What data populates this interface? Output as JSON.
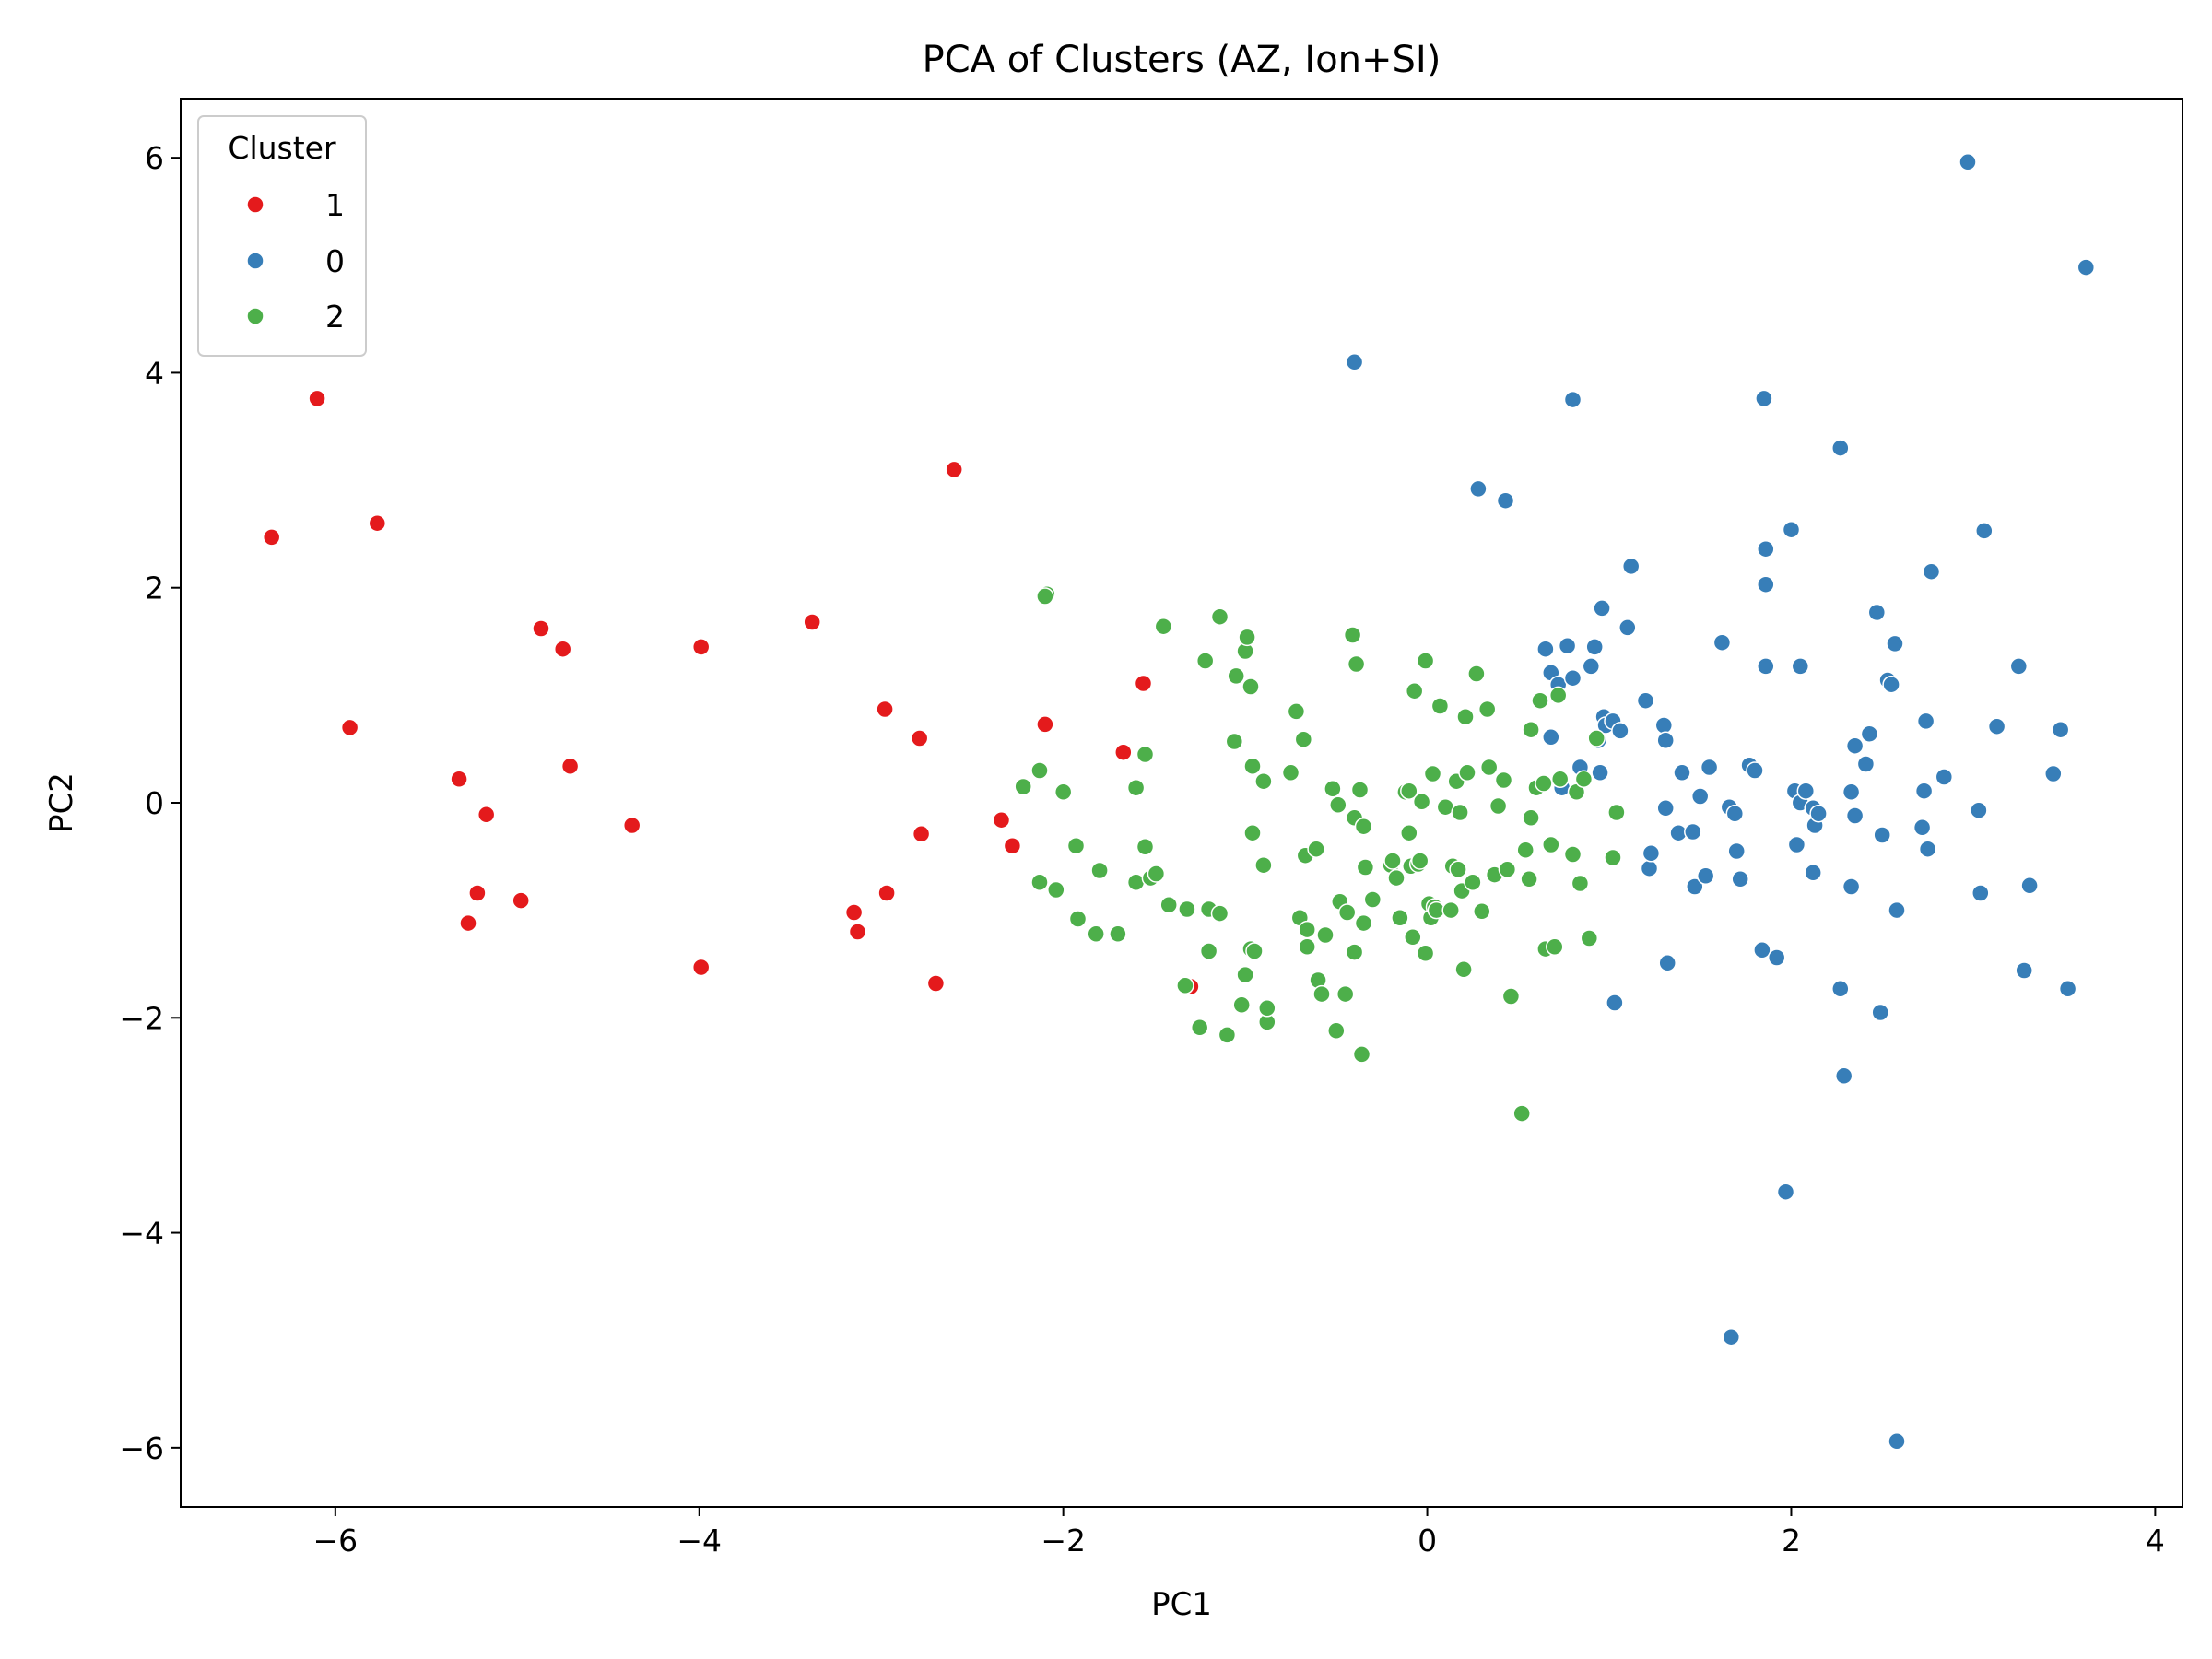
{
  "chart_data": {
    "type": "scatter",
    "title": "PCA of Clusters (AZ, Ion+SI)",
    "xlabel": "PC1",
    "ylabel": "PC2",
    "xlim": [
      -6.85,
      4.15
    ],
    "ylim": [
      -6.55,
      6.55
    ],
    "xticks": [
      -6,
      -4,
      -2,
      0,
      2,
      4
    ],
    "yticks": [
      -6,
      -4,
      -2,
      0,
      2,
      4,
      6
    ],
    "xtick_labels": [
      "−6",
      "−4",
      "−2",
      "0",
      "2",
      "4"
    ],
    "ytick_labels": [
      "−6",
      "−4",
      "−2",
      "0",
      "2",
      "4",
      "6"
    ],
    "grid": false,
    "legend": {
      "title": "Cluster",
      "placement": "top-left"
    },
    "series": [
      {
        "name": "1",
        "color": "#e41a1c",
        "points": [
          [
            -6.35,
            2.47
          ],
          [
            -6.1,
            3.76
          ],
          [
            -5.92,
            0.7
          ],
          [
            -5.77,
            2.6
          ],
          [
            -5.32,
            0.22
          ],
          [
            -5.27,
            -1.12
          ],
          [
            -5.22,
            -0.84
          ],
          [
            -5.17,
            -0.11
          ],
          [
            -4.98,
            -0.91
          ],
          [
            -4.87,
            1.62
          ],
          [
            -4.75,
            1.43
          ],
          [
            -4.71,
            0.34
          ],
          [
            -4.37,
            -0.21
          ],
          [
            -3.99,
            1.45
          ],
          [
            -3.99,
            -1.53
          ],
          [
            -3.38,
            1.68
          ],
          [
            -3.15,
            -1.02
          ],
          [
            -3.13,
            -1.2
          ],
          [
            -2.98,
            0.87
          ],
          [
            -2.97,
            -0.84
          ],
          [
            -2.79,
            0.6
          ],
          [
            -2.78,
            -0.29
          ],
          [
            -2.7,
            -1.68
          ],
          [
            -2.6,
            3.1
          ],
          [
            -2.34,
            -0.16
          ],
          [
            -2.28,
            -0.4
          ],
          [
            -2.1,
            0.73
          ],
          [
            -1.67,
            0.47
          ],
          [
            -1.56,
            1.11
          ],
          [
            -1.3,
            -1.71
          ]
        ]
      },
      {
        "name": "0",
        "color": "#377eb8",
        "points": [
          [
            -0.4,
            4.1
          ],
          [
            0.28,
            2.92
          ],
          [
            0.43,
            2.81
          ],
          [
            0.65,
            1.43
          ],
          [
            0.68,
            1.21
          ],
          [
            0.68,
            0.61
          ],
          [
            0.72,
            1.1
          ],
          [
            0.74,
            0.14
          ],
          [
            0.77,
            1.46
          ],
          [
            0.8,
            1.16
          ],
          [
            0.8,
            3.75
          ],
          [
            0.84,
            0.33
          ],
          [
            0.9,
            1.27
          ],
          [
            0.92,
            1.45
          ],
          [
            0.94,
            0.58
          ],
          [
            0.95,
            0.28
          ],
          [
            0.96,
            1.81
          ],
          [
            0.97,
            0.8
          ],
          [
            0.98,
            0.72
          ],
          [
            1.02,
            0.76
          ],
          [
            1.03,
            -1.86
          ],
          [
            1.06,
            0.67
          ],
          [
            1.1,
            1.63
          ],
          [
            1.12,
            2.2
          ],
          [
            1.2,
            0.95
          ],
          [
            1.22,
            -0.61
          ],
          [
            1.23,
            -0.47
          ],
          [
            1.3,
            0.72
          ],
          [
            1.31,
            0.58
          ],
          [
            1.31,
            -0.05
          ],
          [
            1.32,
            -1.49
          ],
          [
            1.38,
            -0.28
          ],
          [
            1.4,
            0.28
          ],
          [
            1.46,
            -0.27
          ],
          [
            1.47,
            -0.78
          ],
          [
            1.5,
            0.06
          ],
          [
            1.53,
            -0.68
          ],
          [
            1.55,
            0.33
          ],
          [
            1.62,
            1.49
          ],
          [
            1.66,
            -0.04
          ],
          [
            1.67,
            -4.97
          ],
          [
            1.69,
            -0.1
          ],
          [
            1.7,
            -0.45
          ],
          [
            1.72,
            -0.71
          ],
          [
            1.77,
            0.35
          ],
          [
            1.8,
            0.3
          ],
          [
            1.84,
            -1.37
          ],
          [
            1.85,
            3.76
          ],
          [
            1.86,
            2.03
          ],
          [
            1.86,
            2.36
          ],
          [
            1.86,
            1.27
          ],
          [
            1.92,
            -1.44
          ],
          [
            1.97,
            -3.62
          ],
          [
            2.0,
            2.54
          ],
          [
            2.02,
            0.11
          ],
          [
            2.03,
            -0.39
          ],
          [
            2.05,
            0.0
          ],
          [
            2.05,
            1.27
          ],
          [
            2.08,
            0.11
          ],
          [
            2.12,
            -0.05
          ],
          [
            2.12,
            -0.65
          ],
          [
            2.13,
            -0.21
          ],
          [
            2.15,
            -0.1
          ],
          [
            2.27,
            3.3
          ],
          [
            2.27,
            -1.73
          ],
          [
            2.29,
            -2.54
          ],
          [
            2.33,
            0.1
          ],
          [
            2.33,
            -0.78
          ],
          [
            2.35,
            0.53
          ],
          [
            2.35,
            -0.12
          ],
          [
            2.41,
            0.36
          ],
          [
            2.43,
            0.64
          ],
          [
            2.47,
            1.77
          ],
          [
            2.49,
            -1.95
          ],
          [
            2.5,
            -0.3
          ],
          [
            2.53,
            1.14
          ],
          [
            2.55,
            1.1
          ],
          [
            2.57,
            1.48
          ],
          [
            2.58,
            -1.0
          ],
          [
            2.58,
            -5.94
          ],
          [
            2.72,
            -0.23
          ],
          [
            2.73,
            0.11
          ],
          [
            2.74,
            0.76
          ],
          [
            2.75,
            -0.43
          ],
          [
            2.77,
            2.15
          ],
          [
            2.84,
            0.24
          ],
          [
            2.97,
            5.96
          ],
          [
            3.03,
            -0.07
          ],
          [
            3.04,
            -0.84
          ],
          [
            3.06,
            2.53
          ],
          [
            3.13,
            0.71
          ],
          [
            3.25,
            1.27
          ],
          [
            3.28,
            -1.56
          ],
          [
            3.31,
            -0.77
          ],
          [
            3.44,
            0.27
          ],
          [
            3.48,
            0.68
          ],
          [
            3.52,
            -1.73
          ],
          [
            3.62,
            4.98
          ]
        ]
      },
      {
        "name": "2",
        "color": "#4daf4a",
        "points": [
          [
            -2.09,
            1.94
          ],
          [
            -2.1,
            1.92
          ],
          [
            -2.13,
            0.3
          ],
          [
            -2.22,
            0.15
          ],
          [
            -2.13,
            -0.74
          ],
          [
            -2.04,
            -0.81
          ],
          [
            -2.0,
            0.1
          ],
          [
            -1.93,
            -0.4
          ],
          [
            -1.92,
            -1.08
          ],
          [
            -1.82,
            -1.22
          ],
          [
            -1.8,
            -0.63
          ],
          [
            -1.7,
            -1.22
          ],
          [
            -1.6,
            -0.74
          ],
          [
            -1.6,
            0.14
          ],
          [
            -1.55,
            0.45
          ],
          [
            -1.55,
            -0.41
          ],
          [
            -1.52,
            -0.7
          ],
          [
            -1.49,
            -0.66
          ],
          [
            -1.45,
            1.64
          ],
          [
            -1.42,
            -0.95
          ],
          [
            -1.33,
            -1.7
          ],
          [
            -1.32,
            -0.99
          ],
          [
            -1.25,
            -2.09
          ],
          [
            -1.22,
            1.32
          ],
          [
            -1.2,
            -0.99
          ],
          [
            -1.2,
            -1.38
          ],
          [
            -1.14,
            -1.03
          ],
          [
            -1.14,
            1.73
          ],
          [
            -1.1,
            -2.16
          ],
          [
            -1.06,
            0.57
          ],
          [
            -1.05,
            1.18
          ],
          [
            -1.02,
            -1.88
          ],
          [
            -1.0,
            -1.6
          ],
          [
            -1.0,
            1.41
          ],
          [
            -0.99,
            1.54
          ],
          [
            -0.97,
            1.08
          ],
          [
            -0.97,
            -1.36
          ],
          [
            -0.96,
            -0.28
          ],
          [
            -0.96,
            0.34
          ],
          [
            -0.95,
            -1.38
          ],
          [
            -0.9,
            0.2
          ],
          [
            -0.9,
            -0.58
          ],
          [
            -0.88,
            -2.04
          ],
          [
            -0.88,
            -1.91
          ],
          [
            -0.75,
            0.28
          ],
          [
            -0.72,
            0.85
          ],
          [
            -0.7,
            -1.07
          ],
          [
            -0.68,
            0.59
          ],
          [
            -0.67,
            -0.49
          ],
          [
            -0.66,
            -1.18
          ],
          [
            -0.66,
            -1.34
          ],
          [
            -0.61,
            -0.43
          ],
          [
            -0.6,
            -1.65
          ],
          [
            -0.58,
            -1.78
          ],
          [
            -0.56,
            -1.23
          ],
          [
            -0.52,
            0.13
          ],
          [
            -0.5,
            -2.12
          ],
          [
            -0.49,
            -0.02
          ],
          [
            -0.48,
            -0.92
          ],
          [
            -0.45,
            -1.78
          ],
          [
            -0.44,
            -1.02
          ],
          [
            -0.41,
            1.56
          ],
          [
            -0.4,
            -0.14
          ],
          [
            -0.4,
            -1.39
          ],
          [
            -0.39,
            1.29
          ],
          [
            -0.37,
            0.12
          ],
          [
            -0.36,
            -2.34
          ],
          [
            -0.35,
            -1.12
          ],
          [
            -0.35,
            -0.22
          ],
          [
            -0.34,
            -0.6
          ],
          [
            -0.3,
            -0.9
          ],
          [
            -0.2,
            -0.58
          ],
          [
            -0.19,
            -0.54
          ],
          [
            -0.17,
            -0.7
          ],
          [
            -0.15,
            -1.07
          ],
          [
            -0.12,
            0.1
          ],
          [
            -0.1,
            0.11
          ],
          [
            -0.1,
            -0.28
          ],
          [
            -0.09,
            -0.59
          ],
          [
            -0.08,
            -1.25
          ],
          [
            -0.07,
            1.04
          ],
          [
            -0.05,
            -0.57
          ],
          [
            -0.04,
            -0.54
          ],
          [
            -0.03,
            0.01
          ],
          [
            -0.01,
            -1.4
          ],
          [
            -0.01,
            1.32
          ],
          [
            0.01,
            -0.94
          ],
          [
            0.02,
            -1.07
          ],
          [
            0.03,
            0.27
          ],
          [
            0.04,
            -0.97
          ],
          [
            0.05,
            -1.0
          ],
          [
            0.07,
            0.9
          ],
          [
            0.1,
            -0.04
          ],
          [
            0.13,
            -1.0
          ],
          [
            0.14,
            -0.59
          ],
          [
            0.16,
            0.2
          ],
          [
            0.17,
            -0.62
          ],
          [
            0.18,
            -0.09
          ],
          [
            0.19,
            -0.82
          ],
          [
            0.2,
            -1.55
          ],
          [
            0.21,
            0.8
          ],
          [
            0.22,
            0.28
          ],
          [
            0.25,
            -0.74
          ],
          [
            0.27,
            1.2
          ],
          [
            0.3,
            -1.01
          ],
          [
            0.33,
            0.87
          ],
          [
            0.34,
            0.33
          ],
          [
            0.37,
            -0.67
          ],
          [
            0.39,
            -0.03
          ],
          [
            0.42,
            0.21
          ],
          [
            0.44,
            -0.62
          ],
          [
            0.46,
            -1.8
          ],
          [
            0.52,
            -2.89
          ],
          [
            0.54,
            -0.44
          ],
          [
            0.56,
            -0.71
          ],
          [
            0.57,
            0.68
          ],
          [
            0.57,
            -0.14
          ],
          [
            0.6,
            0.14
          ],
          [
            0.62,
            0.95
          ],
          [
            0.64,
            0.18
          ],
          [
            0.65,
            -1.36
          ],
          [
            0.68,
            -0.39
          ],
          [
            0.7,
            -1.34
          ],
          [
            0.72,
            1.0
          ],
          [
            0.73,
            0.22
          ],
          [
            0.8,
            -0.48
          ],
          [
            0.82,
            0.1
          ],
          [
            0.84,
            -0.75
          ],
          [
            0.86,
            0.22
          ],
          [
            0.89,
            -1.26
          ],
          [
            0.93,
            0.6
          ],
          [
            1.02,
            -0.51
          ],
          [
            1.04,
            -0.09
          ]
        ]
      }
    ]
  }
}
